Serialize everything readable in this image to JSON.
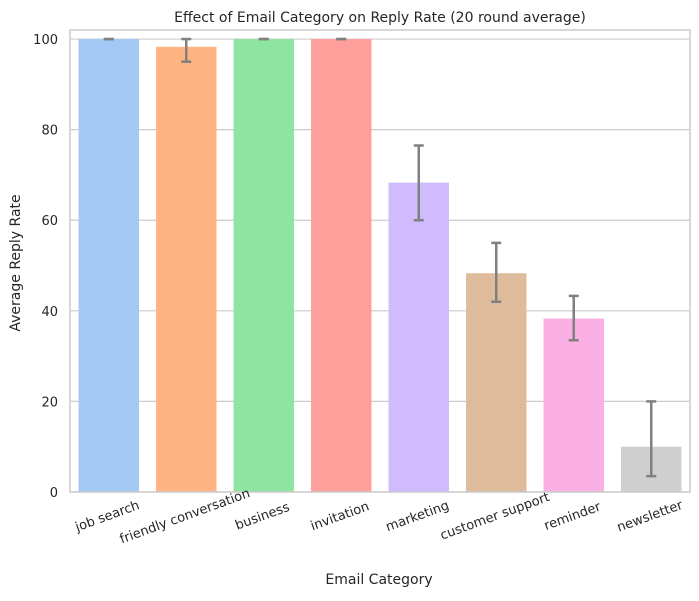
{
  "chart_data": {
    "type": "bar",
    "title": "Effect of Email Category on Reply Rate (20 round average)",
    "xlabel": "Email Category",
    "ylabel": "Average Reply Rate",
    "categories": [
      "job search",
      "friendly conversation",
      "business",
      "invitation",
      "marketing",
      "customer support",
      "reminder",
      "newsletter"
    ],
    "values": [
      100,
      98.3,
      100,
      100,
      68.3,
      48.3,
      38.3,
      10
    ],
    "error_low": [
      100,
      95,
      100,
      100,
      60,
      42,
      33.5,
      3.5
    ],
    "error_high": [
      100,
      100,
      100,
      100,
      76.5,
      55,
      43.3,
      20
    ],
    "ylim": [
      0,
      102
    ],
    "yticks": [
      0,
      20,
      40,
      60,
      80,
      100
    ],
    "grid": true,
    "colors": [
      "#a1c9f4",
      "#ffb482",
      "#8de5a1",
      "#ff9f9b",
      "#d0bbff",
      "#debb9b",
      "#fab0e4",
      "#cfcfcf"
    ],
    "error_color": "#808080",
    "grid_color": "#cccccc"
  }
}
